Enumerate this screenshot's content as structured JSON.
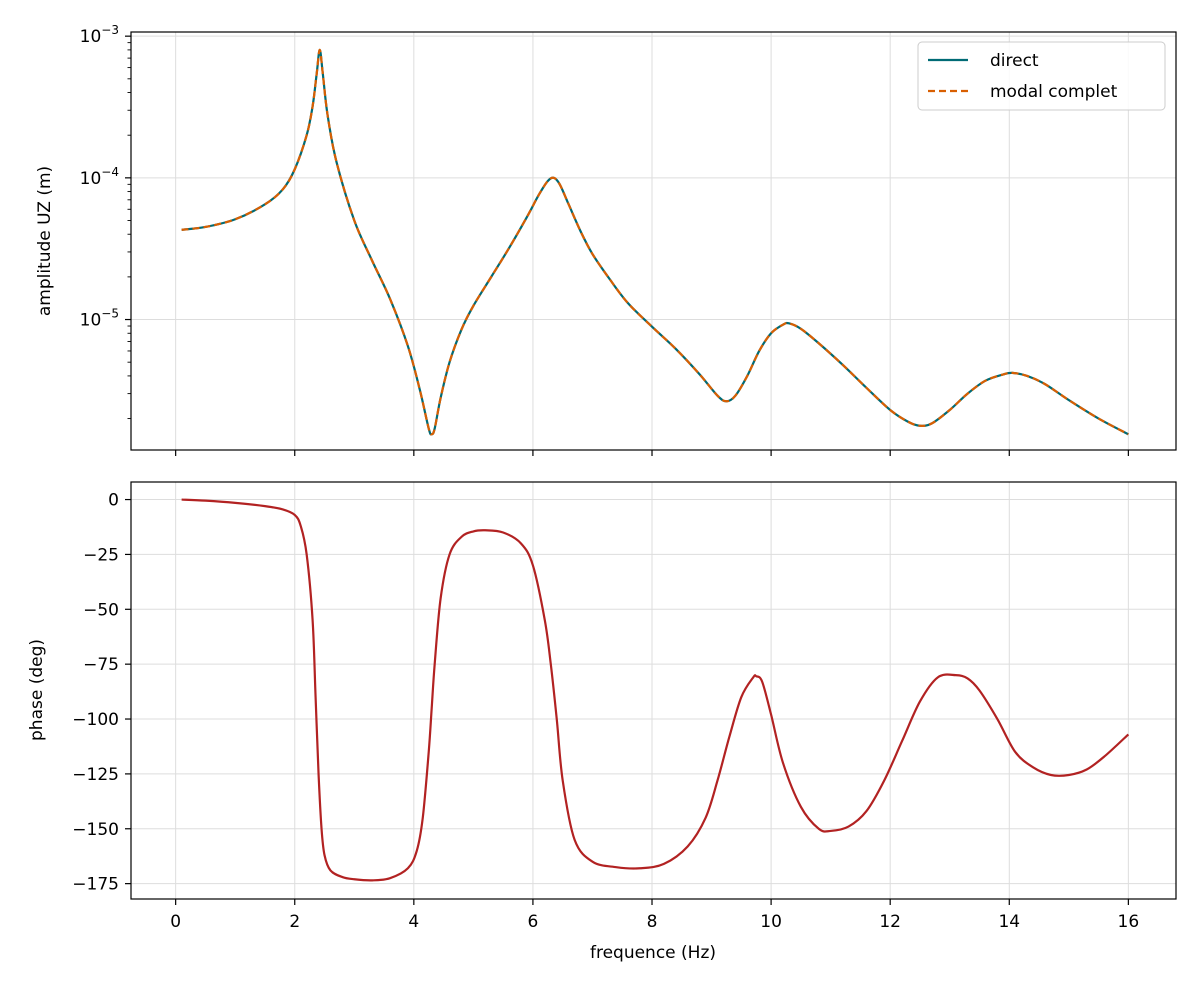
{
  "colors": {
    "direct": "#006b75",
    "modal": "#d95f02",
    "phase": "#b22222",
    "grid": "#dddddd",
    "axis": "#000000"
  },
  "chart_data": [
    {
      "type": "line",
      "title": "",
      "xlabel": "",
      "ylabel": "amplitude UZ (m)",
      "xlim": [
        -0.75,
        16.8
      ],
      "ylim": [
        1.2e-06,
        0.00107
      ],
      "yscale": "log",
      "grid": true,
      "legend": "top-right",
      "y_tick_labels": [
        {
          "value": 1e-05,
          "base": "10",
          "exp": "−5"
        },
        {
          "value": 0.0001,
          "base": "10",
          "exp": "−4"
        },
        {
          "value": 0.001,
          "base": "10",
          "exp": "−3"
        }
      ],
      "series": [
        {
          "name": "direct",
          "style": "solid",
          "x": [
            0.1,
            0.5,
            1.0,
            1.5,
            1.8,
            2.0,
            2.2,
            2.3,
            2.37,
            2.42,
            2.47,
            2.55,
            2.7,
            3.0,
            3.3,
            3.6,
            3.9,
            4.1,
            4.25,
            4.3,
            4.35,
            4.45,
            4.6,
            4.8,
            5.0,
            5.3,
            5.6,
            5.9,
            6.1,
            6.25,
            6.35,
            6.45,
            6.6,
            6.8,
            7.0,
            7.3,
            7.6,
            8.0,
            8.4,
            8.8,
            9.1,
            9.25,
            9.4,
            9.6,
            9.8,
            10.0,
            10.2,
            10.3,
            10.5,
            10.8,
            11.2,
            11.6,
            12.0,
            12.3,
            12.5,
            12.7,
            13.0,
            13.3,
            13.6,
            13.9,
            14.05,
            14.3,
            14.6,
            15.0,
            15.5,
            16.0
          ],
          "y": [
            4.3e-05,
            4.5e-05,
            5.1e-05,
            6.5e-05,
            8.3e-05,
            0.000115,
            0.0002,
            0.00032,
            0.00055,
            0.0008,
            0.00055,
            0.00028,
            0.00013,
            5e-05,
            2.6e-05,
            1.4e-05,
            6.5e-06,
            3.2e-06,
            1.7e-06,
            1.55e-06,
            1.7e-06,
            2.8e-06,
            5e-06,
            8.5e-06,
            1.25e-05,
            2e-05,
            3.2e-05,
            5.3e-05,
            7.6e-05,
            9.5e-05,
            0.0001,
            9e-05,
            6.5e-05,
            4.2e-05,
            2.9e-05,
            1.9e-05,
            1.3e-05,
            8.9e-06,
            6.2e-06,
            4.1e-06,
            2.9e-06,
            2.65e-06,
            2.9e-06,
            4e-06,
            6e-06,
            8e-06,
            9.2e-06,
            9.4e-06,
            8.6e-06,
            6.8e-06,
            4.8e-06,
            3.3e-06,
            2.3e-06,
            1.9e-06,
            1.78e-06,
            1.85e-06,
            2.3e-06,
            3e-06,
            3.7e-06,
            4.1e-06,
            4.2e-06,
            4e-06,
            3.5e-06,
            2.7e-06,
            2e-06,
            1.55e-06
          ]
        },
        {
          "name": "modal complet",
          "style": "dashed",
          "x": [
            0.1,
            0.5,
            1.0,
            1.5,
            1.8,
            2.0,
            2.2,
            2.3,
            2.37,
            2.42,
            2.47,
            2.55,
            2.7,
            3.0,
            3.3,
            3.6,
            3.9,
            4.1,
            4.25,
            4.3,
            4.35,
            4.45,
            4.6,
            4.8,
            5.0,
            5.3,
            5.6,
            5.9,
            6.1,
            6.25,
            6.35,
            6.45,
            6.6,
            6.8,
            7.0,
            7.3,
            7.6,
            8.0,
            8.4,
            8.8,
            9.1,
            9.25,
            9.4,
            9.6,
            9.8,
            10.0,
            10.2,
            10.3,
            10.5,
            10.8,
            11.2,
            11.6,
            12.0,
            12.3,
            12.5,
            12.7,
            13.0,
            13.3,
            13.6,
            13.9,
            14.05,
            14.3,
            14.6,
            15.0,
            15.5,
            16.0
          ],
          "y": [
            4.3e-05,
            4.5e-05,
            5.1e-05,
            6.5e-05,
            8.3e-05,
            0.000115,
            0.0002,
            0.00032,
            0.00055,
            0.0008,
            0.00055,
            0.00028,
            0.00013,
            5e-05,
            2.6e-05,
            1.4e-05,
            6.5e-06,
            3.2e-06,
            1.7e-06,
            1.55e-06,
            1.7e-06,
            2.8e-06,
            5e-06,
            8.5e-06,
            1.25e-05,
            2e-05,
            3.2e-05,
            5.3e-05,
            7.6e-05,
            9.5e-05,
            0.0001,
            9e-05,
            6.5e-05,
            4.2e-05,
            2.9e-05,
            1.9e-05,
            1.3e-05,
            8.9e-06,
            6.2e-06,
            4.1e-06,
            2.9e-06,
            2.65e-06,
            2.9e-06,
            4e-06,
            6e-06,
            8e-06,
            9.2e-06,
            9.4e-06,
            8.6e-06,
            6.8e-06,
            4.8e-06,
            3.3e-06,
            2.3e-06,
            1.9e-06,
            1.78e-06,
            1.85e-06,
            2.3e-06,
            3e-06,
            3.7e-06,
            4.1e-06,
            4.2e-06,
            4e-06,
            3.5e-06,
            2.7e-06,
            2e-06,
            1.55e-06
          ]
        }
      ]
    },
    {
      "type": "line",
      "title": "",
      "xlabel": "frequence (Hz)",
      "ylabel": "phase (deg)",
      "xlim": [
        -0.75,
        16.8
      ],
      "ylim": [
        -182,
        8
      ],
      "yscale": "linear",
      "grid": true,
      "x_ticks": [
        0,
        2,
        4,
        6,
        8,
        10,
        12,
        14,
        16
      ],
      "y_ticks": [
        0,
        -25,
        -50,
        -75,
        -100,
        -125,
        -150,
        -175
      ],
      "y_tick_labels": [
        "0",
        "−25",
        "−50",
        "−75",
        "−100",
        "−125",
        "−150",
        "−175"
      ],
      "series": [
        {
          "name": "phase",
          "style": "solid",
          "x": [
            0.1,
            0.5,
            1.0,
            1.5,
            1.8,
            2.0,
            2.1,
            2.2,
            2.3,
            2.35,
            2.4,
            2.45,
            2.5,
            2.6,
            2.8,
            3.0,
            3.3,
            3.6,
            3.9,
            4.05,
            4.15,
            4.25,
            4.3,
            4.35,
            4.45,
            4.6,
            4.8,
            5.0,
            5.2,
            5.5,
            5.8,
            6.0,
            6.2,
            6.3,
            6.4,
            6.5,
            6.7,
            7.0,
            7.4,
            7.8,
            8.2,
            8.6,
            8.9,
            9.1,
            9.3,
            9.5,
            9.7,
            9.75,
            9.85,
            10.0,
            10.2,
            10.5,
            10.8,
            11.0,
            11.3,
            11.6,
            11.9,
            12.2,
            12.5,
            12.8,
            13.1,
            13.3,
            13.5,
            13.8,
            14.1,
            14.4,
            14.7,
            15.0,
            15.3,
            15.6,
            16.0
          ],
          "y": [
            0,
            -0.5,
            -1.5,
            -3,
            -4.5,
            -7,
            -12,
            -25,
            -55,
            -90,
            -125,
            -150,
            -162,
            -169,
            -172,
            -173,
            -173.5,
            -172.5,
            -168,
            -160,
            -145,
            -115,
            -95,
            -75,
            -45,
            -25,
            -17,
            -14.5,
            -14,
            -15,
            -20,
            -30,
            -55,
            -75,
            -100,
            -128,
            -155,
            -165,
            -167.5,
            -168,
            -166,
            -158,
            -145,
            -128,
            -108,
            -90,
            -81,
            -80.5,
            -83,
            -98,
            -120,
            -140,
            -150,
            -151,
            -149,
            -142,
            -128,
            -110,
            -92,
            -81,
            -80,
            -81.5,
            -87,
            -100,
            -115,
            -122,
            -125.5,
            -125.5,
            -123,
            -117,
            -107
          ]
        }
      ]
    }
  ]
}
